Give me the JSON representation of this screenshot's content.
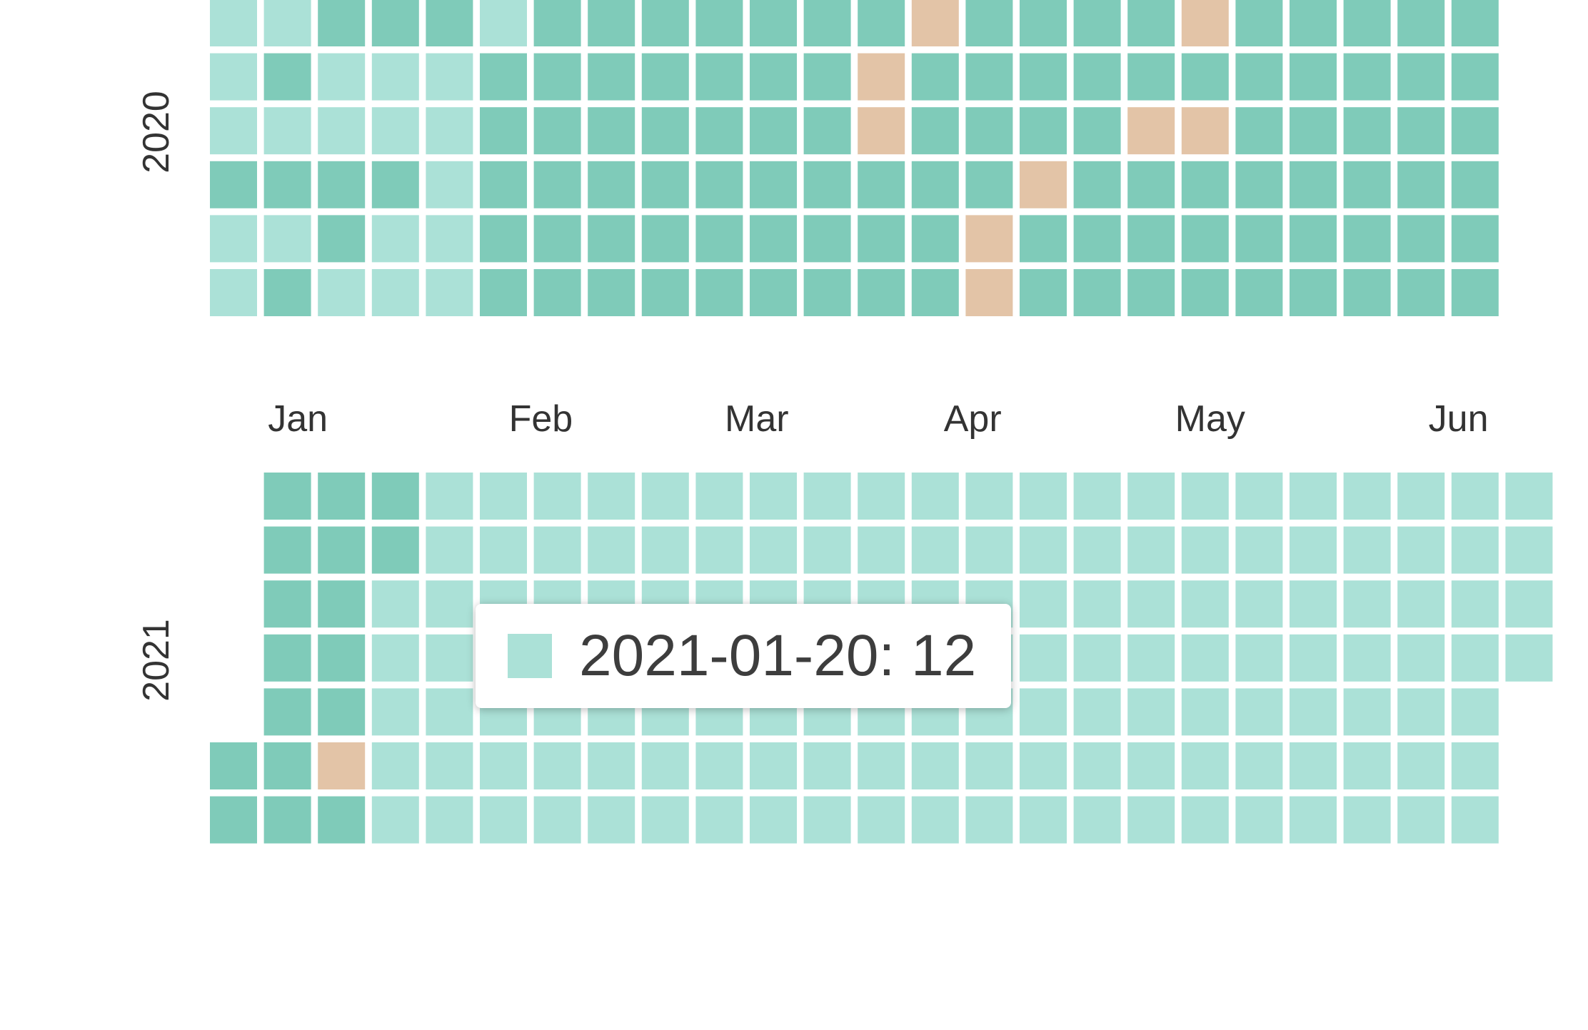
{
  "chart_data": {
    "type": "heatmap",
    "title": "",
    "colors": {
      "low": "#abe1d7",
      "mid": "#7fcbb9",
      "high": "#e3c4a7"
    },
    "years": [
      {
        "label": "2020",
        "first_weekday": 1,
        "levels": [
          [
            1,
            1,
            1,
            2,
            1,
            1,
            1,
            1,
            2,
            1,
            2,
            1,
            2,
            1,
            2,
            1,
            1,
            2,
            2,
            1,
            1,
            2,
            1,
            1,
            2,
            1,
            1,
            1,
            2,
            1,
            1,
            1,
            1,
            1,
            2,
            1,
            2,
            2,
            2,
            2,
            2,
            2,
            2,
            2,
            2,
            2,
            2,
            2,
            2,
            2,
            2,
            2,
            2,
            2,
            2,
            2,
            2,
            2,
            2,
            2,
            2,
            2,
            2,
            2,
            2,
            2,
            2,
            2,
            2,
            2,
            2,
            2,
            2,
            2,
            2,
            2,
            2,
            2,
            2,
            2,
            2,
            2,
            2,
            2,
            2,
            3,
            3,
            2,
            2,
            2,
            2,
            3,
            2,
            2,
            2,
            2,
            2,
            3,
            2,
            2,
            2,
            2,
            3,
            3,
            2,
            2,
            2,
            2,
            3,
            2,
            2,
            2,
            2,
            2,
            2,
            2,
            2,
            2,
            2,
            2,
            2,
            3,
            2,
            2,
            2,
            2,
            3,
            2,
            3,
            2,
            2,
            2,
            1,
            2,
            2,
            2,
            2,
            2,
            2,
            2,
            2,
            2,
            2,
            2,
            2,
            2,
            2,
            2,
            2,
            2,
            2,
            2,
            2,
            2,
            2,
            2,
            2,
            2,
            2,
            2,
            2,
            2,
            2,
            2,
            2,
            2,
            2
          ]
        ]
      },
      {
        "label": "2021",
        "first_weekday": 5,
        "levels": [
          [
            2,
            2,
            2,
            2,
            2,
            2,
            2,
            2,
            2,
            2,
            2,
            2,
            2,
            2,
            3,
            2,
            2,
            2,
            1,
            1,
            1,
            1,
            1,
            1,
            1,
            1,
            1,
            1,
            1,
            1,
            1,
            1,
            1,
            1,
            1,
            1,
            1,
            1,
            1,
            1,
            1,
            1,
            1,
            1,
            1,
            1,
            1,
            1,
            1,
            1,
            1,
            1,
            1,
            1,
            1,
            1,
            1,
            1,
            1,
            1,
            1,
            1,
            1,
            1,
            1,
            1,
            1,
            1,
            1,
            1,
            1,
            1,
            1,
            1,
            1,
            1,
            1,
            1,
            1,
            1,
            1,
            1,
            1,
            1,
            1,
            1,
            1,
            1,
            1,
            1,
            1,
            1,
            1,
            1,
            1,
            1,
            1,
            1,
            1,
            1,
            1,
            1,
            1,
            1,
            1,
            1,
            1,
            1,
            1,
            1,
            1,
            1,
            1,
            1,
            1,
            1,
            1,
            1,
            1,
            1,
            1,
            1,
            1,
            1,
            1,
            1,
            1,
            1,
            1,
            1,
            1,
            1,
            1,
            1,
            1,
            1,
            1,
            1,
            1,
            1,
            1,
            1,
            1,
            1,
            1,
            1,
            1,
            1,
            1,
            1,
            1,
            1,
            1,
            1,
            1,
            1,
            1,
            1,
            1,
            1,
            1,
            1,
            1,
            1,
            1,
            1,
            1
          ]
        ]
      }
    ],
    "month_labels": [
      "Jan",
      "Feb",
      "Mar",
      "Apr",
      "May",
      "Jun"
    ],
    "month_label_weeks": [
      2,
      6.5,
      10.5,
      14.5,
      18.9,
      23.5
    ],
    "tooltip": {
      "text": "2021-01-20: 12",
      "level": 1
    }
  }
}
